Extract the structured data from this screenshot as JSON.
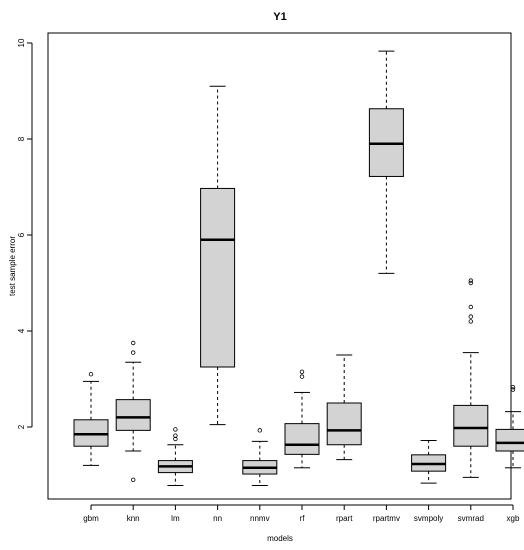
{
  "chart_data": {
    "type": "boxplot",
    "title": "Y1",
    "xlabel": "models",
    "ylabel": "test sample error",
    "ylim": [
      0.5,
      10.2
    ],
    "yticks": [
      2,
      4,
      6,
      8,
      10
    ],
    "categories": [
      "gbm",
      "knn",
      "lm",
      "nn",
      "nnmv",
      "rf",
      "rpart",
      "rpartmv",
      "svmpoly",
      "svmrad",
      "xgb"
    ],
    "boxes": [
      {
        "name": "gbm",
        "whisker_low": 1.2,
        "q1": 1.6,
        "median": 1.85,
        "q3": 2.15,
        "whisker_high": 2.95,
        "outliers": [
          3.1
        ]
      },
      {
        "name": "knn",
        "whisker_low": 1.5,
        "q1": 1.93,
        "median": 2.2,
        "q3": 2.57,
        "whisker_high": 3.35,
        "outliers": [
          0.9,
          3.55,
          3.75
        ]
      },
      {
        "name": "lm",
        "whisker_low": 0.78,
        "q1": 1.05,
        "median": 1.18,
        "q3": 1.3,
        "whisker_high": 1.63,
        "outliers": [
          1.75,
          1.82,
          1.95
        ]
      },
      {
        "name": "nn",
        "whisker_low": 2.05,
        "q1": 3.25,
        "median": 5.9,
        "q3": 6.97,
        "whisker_high": 9.1,
        "outliers": []
      },
      {
        "name": "nnmv",
        "whisker_low": 0.78,
        "q1": 1.02,
        "median": 1.15,
        "q3": 1.3,
        "whisker_high": 1.7,
        "outliers": [
          1.93
        ]
      },
      {
        "name": "rf",
        "whisker_low": 1.15,
        "q1": 1.43,
        "median": 1.63,
        "q3": 2.07,
        "whisker_high": 2.72,
        "outliers": [
          3.05,
          3.15
        ]
      },
      {
        "name": "rpart",
        "whisker_low": 1.32,
        "q1": 1.63,
        "median": 1.93,
        "q3": 2.5,
        "whisker_high": 3.5,
        "outliers": []
      },
      {
        "name": "rpartmv",
        "whisker_low": 5.2,
        "q1": 7.22,
        "median": 7.9,
        "q3": 8.63,
        "whisker_high": 9.83,
        "outliers": []
      },
      {
        "name": "svmpoly",
        "whisker_low": 0.83,
        "q1": 1.08,
        "median": 1.23,
        "q3": 1.42,
        "whisker_high": 1.72,
        "outliers": []
      },
      {
        "name": "svmrad",
        "whisker_low": 0.95,
        "q1": 1.6,
        "median": 1.98,
        "q3": 2.45,
        "whisker_high": 3.55,
        "outliers": [
          4.2,
          4.3,
          4.5,
          5.0,
          5.05
        ]
      },
      {
        "name": "xgb",
        "whisker_low": 1.15,
        "q1": 1.5,
        "median": 1.67,
        "q3": 1.95,
        "whisker_high": 2.32,
        "outliers": [
          2.78,
          2.83
        ]
      }
    ],
    "colors": {
      "box_fill": "#d3d3d3",
      "stroke": "#000000",
      "background": "#ffffff"
    },
    "grid": false,
    "legend": "none"
  }
}
